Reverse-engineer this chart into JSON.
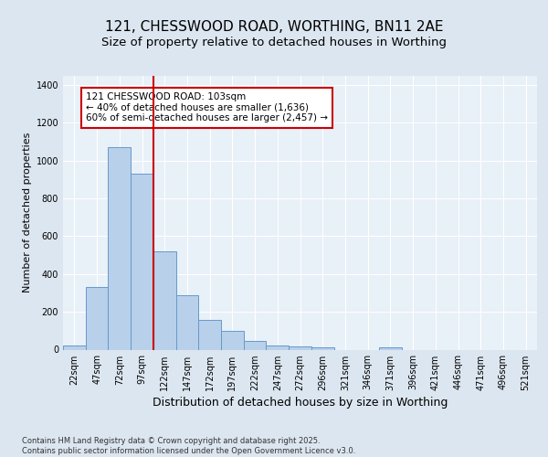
{
  "title": "121, CHESSWOOD ROAD, WORTHING, BN11 2AE",
  "subtitle": "Size of property relative to detached houses in Worthing",
  "xlabel": "Distribution of detached houses by size in Worthing",
  "ylabel": "Number of detached properties",
  "categories": [
    "22sqm",
    "47sqm",
    "72sqm",
    "97sqm",
    "122sqm",
    "147sqm",
    "172sqm",
    "197sqm",
    "222sqm",
    "247sqm",
    "272sqm",
    "296sqm",
    "321sqm",
    "346sqm",
    "371sqm",
    "396sqm",
    "421sqm",
    "446sqm",
    "471sqm",
    "496sqm",
    "521sqm"
  ],
  "values": [
    20,
    330,
    1070,
    930,
    520,
    290,
    155,
    100,
    47,
    20,
    18,
    12,
    0,
    0,
    12,
    0,
    0,
    0,
    0,
    0,
    0
  ],
  "bar_color": "#b8d0ea",
  "bar_edgecolor": "#6699cc",
  "vline_index": 3.5,
  "vline_color": "#cc0000",
  "annotation_text": "121 CHESSWOOD ROAD: 103sqm\n← 40% of detached houses are smaller (1,636)\n60% of semi-detached houses are larger (2,457) →",
  "annotation_box_color": "#ffffff",
  "annotation_box_edgecolor": "#cc0000",
  "ylim": [
    0,
    1450
  ],
  "yticks": [
    0,
    200,
    400,
    600,
    800,
    1000,
    1200,
    1400
  ],
  "bg_color": "#dce6f0",
  "plot_bg_color": "#e8f0f8",
  "footer": "Contains HM Land Registry data © Crown copyright and database right 2025.\nContains public sector information licensed under the Open Government Licence v3.0.",
  "title_fontsize": 11,
  "subtitle_fontsize": 9.5,
  "ylabel_fontsize": 8,
  "xlabel_fontsize": 9,
  "tick_fontsize": 7,
  "footer_fontsize": 6,
  "ann_fontsize": 7.5
}
